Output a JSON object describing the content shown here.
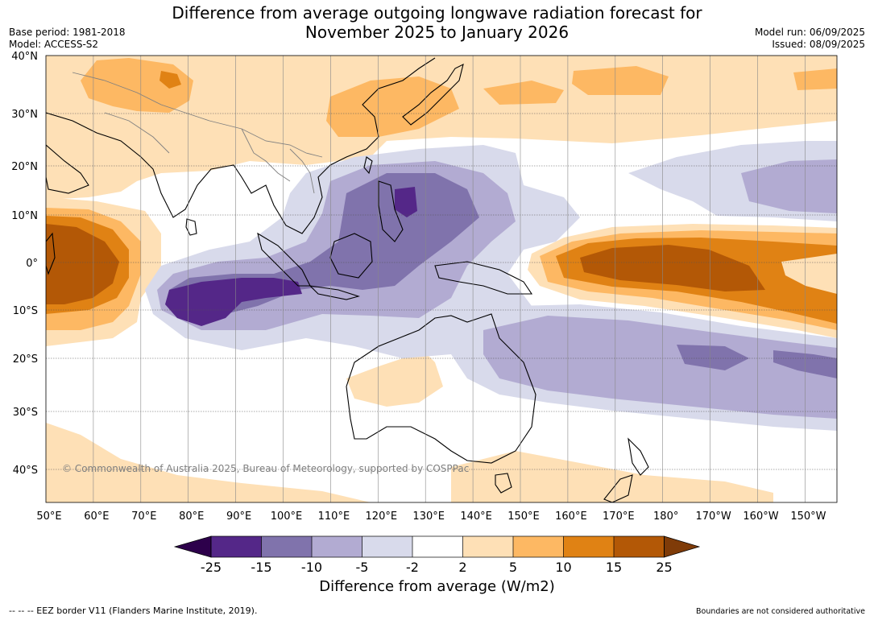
{
  "title": {
    "line1": "Difference from average outgoing longwave radiation forecast for",
    "line2": "November 2025 to January 2026"
  },
  "meta_left": {
    "base_period": "Base period: 1981-2018",
    "model": "Model: ACCESS-S2"
  },
  "meta_right": {
    "model_run": "Model run: 06/09/2025",
    "issued": "Issued: 08/09/2025"
  },
  "map": {
    "lat_labels": [
      "40°N",
      "30°N",
      "20°N",
      "10°N",
      "0°",
      "10°S",
      "20°S",
      "30°S",
      "40°S"
    ],
    "lon_labels": [
      "50°E",
      "60°E",
      "70°E",
      "80°E",
      "90°E",
      "100°E",
      "110°E",
      "120°E",
      "130°E",
      "140°E",
      "150°E",
      "160°E",
      "170°E",
      "180°",
      "170°W",
      "160°W",
      "150°W"
    ],
    "copyright": "© Commonwealth of Australia 2025, Bureau of Meteorology, supported by COSPPac"
  },
  "colorbar": {
    "tick_labels": [
      "-25",
      "-15",
      "-10",
      "-5",
      "-2",
      "2",
      "5",
      "10",
      "15",
      "25"
    ],
    "label": "Difference from average (W/m2)",
    "colors": {
      "under": "#2d004b",
      "bins": [
        "#542788",
        "#8073ac",
        "#b2abd2",
        "#d8daeb",
        "#ffffff",
        "#fee0b6",
        "#fdb863",
        "#e08214",
        "#b35806"
      ],
      "over": "#7f3b08"
    }
  },
  "footer": {
    "left": "--  --  -- EEZ border V11 (Flanders Marine Institute, 2019).",
    "right": "Boundaries are not considered authoritative"
  }
}
